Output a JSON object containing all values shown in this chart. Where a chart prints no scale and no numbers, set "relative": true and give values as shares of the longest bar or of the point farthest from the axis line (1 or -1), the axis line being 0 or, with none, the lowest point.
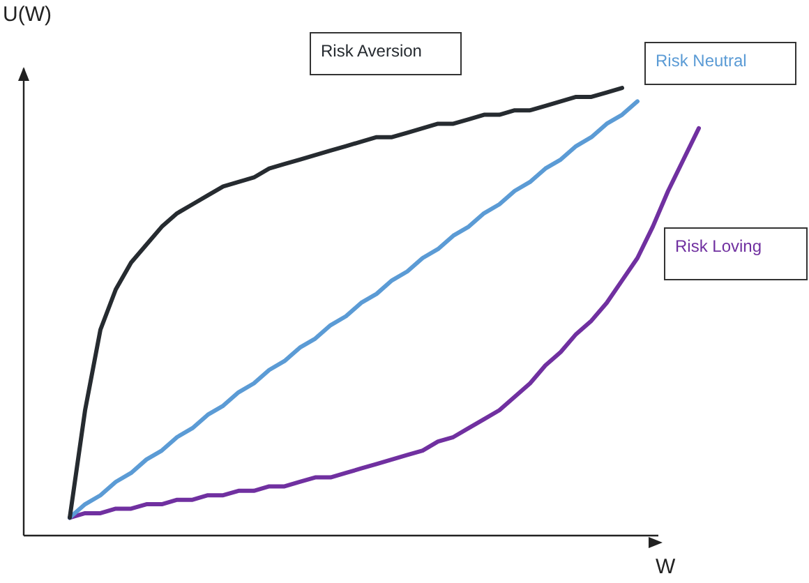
{
  "chart_data": {
    "type": "line",
    "relative": true,
    "xlabel": "W",
    "ylabel": "U(W)",
    "tick_labels": false,
    "marker": "none",
    "categories": [
      null,
      null,
      null,
      null,
      null,
      null,
      null,
      null,
      null,
      null,
      null,
      null,
      null,
      null,
      null,
      null,
      null,
      null,
      null,
      null,
      null,
      null,
      null,
      null,
      null,
      null,
      null,
      null,
      null,
      null,
      null,
      null,
      null,
      null,
      null,
      null,
      null,
      null,
      null,
      null,
      null,
      null,
      null,
      null,
      null
    ],
    "series": [
      {
        "name": "Risk Aversion",
        "color": "#262b30",
        "values": [
          null,
          null,
          null,
          0.04,
          0.28,
          0.46,
          0.55,
          0.61,
          0.65,
          0.69,
          0.72,
          0.74,
          0.76,
          0.78,
          0.79,
          0.8,
          0.82,
          0.83,
          0.84,
          0.85,
          0.86,
          0.87,
          0.88,
          0.89,
          0.89,
          0.9,
          0.91,
          0.92,
          0.92,
          0.93,
          0.94,
          0.94,
          0.95,
          0.95,
          0.96,
          0.97,
          0.98,
          0.98,
          0.99,
          1,
          null,
          null,
          null,
          null,
          null
        ]
      },
      {
        "name": "Risk Neutral",
        "color": "#5b9bd5",
        "values": [
          null,
          null,
          null,
          0.04,
          0.07,
          0.09,
          0.12,
          0.14,
          0.17,
          0.19,
          0.22,
          0.24,
          0.27,
          0.29,
          0.32,
          0.34,
          0.37,
          0.39,
          0.42,
          0.44,
          0.47,
          0.49,
          0.52,
          0.54,
          0.57,
          0.59,
          0.62,
          0.64,
          0.67,
          0.69,
          0.72,
          0.74,
          0.77,
          0.79,
          0.82,
          0.84,
          0.87,
          0.89,
          0.92,
          0.94,
          0.97,
          null,
          null,
          null,
          null
        ]
      },
      {
        "name": "Risk Loving",
        "color": "#7030a0",
        "values": [
          null,
          null,
          null,
          0.04,
          0.05,
          0.05,
          0.06,
          0.06,
          0.07,
          0.07,
          0.08,
          0.08,
          0.09,
          0.09,
          0.1,
          0.1,
          0.11,
          0.11,
          0.12,
          0.13,
          0.13,
          0.14,
          0.15,
          0.16,
          0.17,
          0.18,
          0.19,
          0.21,
          0.22,
          0.24,
          0.26,
          0.28,
          0.31,
          0.34,
          0.38,
          0.41,
          0.45,
          0.48,
          0.52,
          0.57,
          0.62,
          0.69,
          0.77,
          0.84,
          0.91
        ]
      }
    ]
  }
}
